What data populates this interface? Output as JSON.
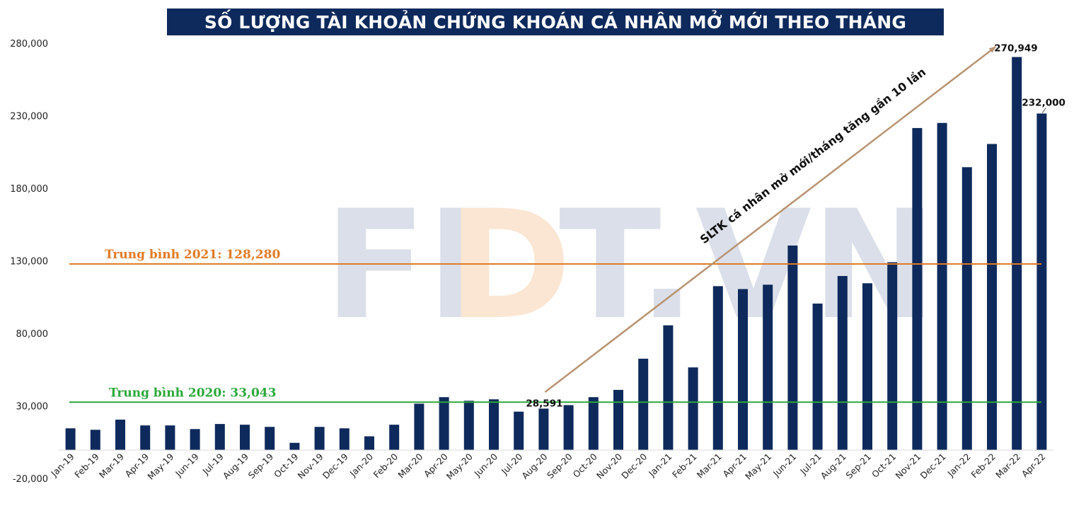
{
  "title": "SỐ LƯỢNG TÀI KHOẢN CHỨNG KHOÁN CÁ NHÂN MỞ MỚI THEO THÁNG",
  "watermark": {
    "left": "FI",
    "mid": "D",
    "right": "T.VN"
  },
  "chart_data": {
    "type": "bar",
    "title": "SỐ LƯỢNG TÀI KHOẢN CHỨNG KHOÁN CÁ NHÂN MỞ MỚI THEO THÁNG",
    "ylim": [
      -20000,
      280000
    ],
    "yticks": [
      -20000,
      30000,
      80000,
      130000,
      180000,
      230000,
      280000
    ],
    "ytick_labels": [
      "-20,000",
      "30,000",
      "80,000",
      "130,000",
      "180,000",
      "230,000",
      "280,000"
    ],
    "grid": false,
    "bar_color": "#0e2a5c",
    "categories": [
      "Jan-19",
      "Feb-19",
      "Mar-19",
      "Apr-19",
      "May-19",
      "Jun-19",
      "Jul-19",
      "Aug-19",
      "Sep-19",
      "Oct-19",
      "Nov-19",
      "Dec-19",
      "Jan-20",
      "Feb-20",
      "Mar-20",
      "Apr-20",
      "May-20",
      "Jun-20",
      "Jul-20",
      "Aug-20",
      "Sep-20",
      "Oct-20",
      "Nov-20",
      "Dec-20",
      "Jan-21",
      "Feb-21",
      "Mar-21",
      "Apr-21",
      "May-21",
      "Jun-21",
      "Jul-21",
      "Aug-21",
      "Sep-21",
      "Oct-21",
      "Nov-21",
      "Dec-21",
      "Jan-22",
      "Feb-22",
      "Mar-22",
      "Apr-22"
    ],
    "values": [
      15000,
      14000,
      21000,
      17000,
      17000,
      14500,
      18000,
      17500,
      16000,
      5000,
      16000,
      15000,
      9500,
      17500,
      32000,
      36500,
      34000,
      35000,
      26500,
      28591,
      31000,
      36500,
      41500,
      63000,
      86000,
      57000,
      113000,
      111000,
      114000,
      141000,
      101000,
      120000,
      115000,
      129500,
      222000,
      225500,
      195000,
      211000,
      270949,
      232000
    ],
    "data_labels": [
      {
        "category": "Aug-20",
        "text": "28,591"
      },
      {
        "category": "Mar-22",
        "text": "270,949"
      },
      {
        "category": "Apr-22",
        "text": "232,000"
      }
    ],
    "reference_lines": [
      {
        "name": "avg-2021",
        "label": "Trung bình  2021: 128,280",
        "value": 128280,
        "color": "#e07b26"
      },
      {
        "name": "avg-2020",
        "label": "Trung bình  2020: 33,043",
        "value": 33043,
        "color": "#2ca83a"
      }
    ],
    "annotation": {
      "text": "SLTK cá nhân mở mới/tháng tăng gần 10 lần",
      "color": "#b89472",
      "from_category": "Aug-20",
      "from_value": 40000,
      "to_category": "Mar-22",
      "to_value": 278000
    }
  }
}
